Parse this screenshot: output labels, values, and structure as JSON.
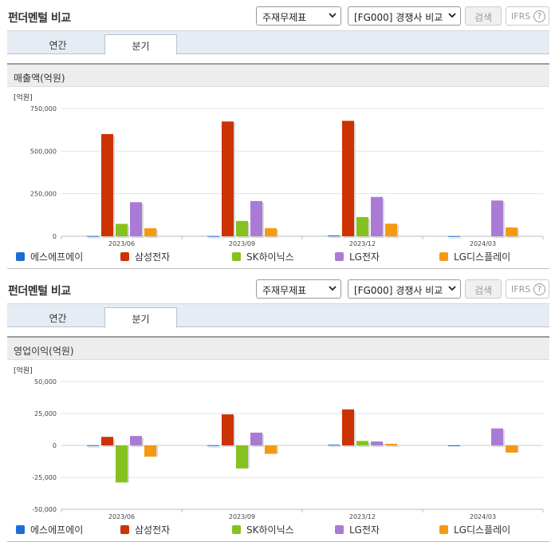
{
  "panels": [
    {
      "title": "펀더멘털 비교",
      "statement_select": "주재무제표",
      "peer_select": "[FG000] 경쟁사 비교",
      "search_label": "검색",
      "ifrs_label": "IFRS",
      "help_label": "?",
      "tabs": [
        {
          "label": "연간",
          "active": false
        },
        {
          "label": "분기",
          "active": true
        }
      ],
      "panel_title": "매출액(억원)"
    },
    {
      "title": "펀더멘털 비교",
      "statement_select": "주재무제표",
      "peer_select": "[FG000] 경쟁사 비교",
      "search_label": "검색",
      "ifrs_label": "IFRS",
      "help_label": "?",
      "tabs": [
        {
          "label": "연간",
          "active": false
        },
        {
          "label": "분기",
          "active": true
        }
      ],
      "panel_title": "영업이익(억원)"
    }
  ],
  "legend": [
    {
      "name": "에스에프에이",
      "color": "#1c6ed6"
    },
    {
      "name": "삼성전자",
      "color": "#cc3300"
    },
    {
      "name": "SK하이닉스",
      "color": "#86c21f"
    },
    {
      "name": "LG전자",
      "color": "#a97bd6"
    },
    {
      "name": "LG디스플레이",
      "color": "#f49a12"
    }
  ],
  "chart_data": [
    {
      "type": "bar",
      "unit_label": "[억원]",
      "categories": [
        "2023/06",
        "2023/09",
        "2023/12",
        "2024/03"
      ],
      "ylim": [
        0,
        750000
      ],
      "yticks": [
        0,
        250000,
        500000,
        750000
      ],
      "ytick_labels": [
        "0",
        "250,000",
        "500,000",
        "750,000"
      ],
      "series": [
        {
          "name": "에스에프에이",
          "values": [
            1500,
            1400,
            5000,
            1200
          ]
        },
        {
          "name": "삼성전자",
          "values": [
            600000,
            674000,
            678000,
            0
          ]
        },
        {
          "name": "SK하이닉스",
          "values": [
            73000,
            90000,
            113000,
            0
          ]
        },
        {
          "name": "LG전자",
          "values": [
            200000,
            207000,
            231000,
            210000
          ]
        },
        {
          "name": "LG디스플레이",
          "values": [
            47000,
            48000,
            74000,
            52000
          ]
        }
      ]
    },
    {
      "type": "bar",
      "unit_label": "[억원]",
      "categories": [
        "2023/06",
        "2023/09",
        "2023/12",
        "2024/03"
      ],
      "ylim": [
        -50000,
        50000
      ],
      "yticks": [
        -50000,
        -25000,
        0,
        25000,
        50000
      ],
      "ytick_labels": [
        "-50,000",
        "-25,000",
        "0",
        "25,000",
        "50,000"
      ],
      "series": [
        {
          "name": "에스에프에이",
          "values": [
            100,
            100,
            600,
            -500
          ]
        },
        {
          "name": "삼성전자",
          "values": [
            6700,
            24300,
            28200,
            0
          ]
        },
        {
          "name": "SK하이닉스",
          "values": [
            -29000,
            -18000,
            3500,
            0
          ]
        },
        {
          "name": "LG전자",
          "values": [
            7400,
            10000,
            3100,
            13300
          ]
        },
        {
          "name": "LG디스플레이",
          "values": [
            -8800,
            -6600,
            1300,
            -5600
          ]
        }
      ]
    }
  ]
}
